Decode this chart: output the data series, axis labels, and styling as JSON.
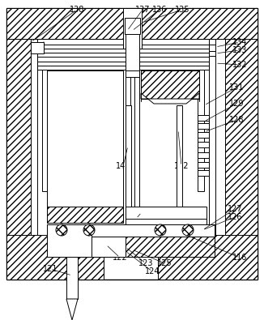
{
  "bg_color": "#ffffff",
  "figsize": [
    3.26,
    3.95
  ],
  "dpi": 100,
  "label_fs": 7.0
}
